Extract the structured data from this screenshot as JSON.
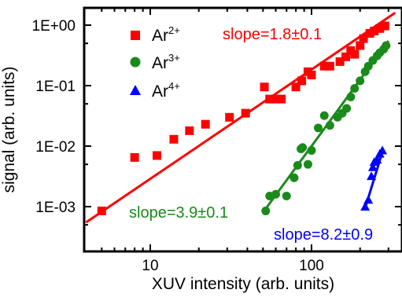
{
  "chart_data": {
    "type": "scatter",
    "title": "",
    "xlabel": "XUV intensity (arb. units)",
    "ylabel": "signal (arb. units)",
    "xscale": "log",
    "yscale": "log",
    "xlim": [
      4.0,
      330
    ],
    "ylim": [
      0.0004,
      1.45
    ],
    "x_tick_labels": [
      {
        "value": 10,
        "label": "10"
      },
      {
        "value": 100,
        "label": "100"
      }
    ],
    "y_tick_labels": [
      {
        "value": 1,
        "label": "1E+00"
      },
      {
        "value": 0.1,
        "label": "1E-01"
      },
      {
        "value": 0.01,
        "label": "1E-02"
      },
      {
        "value": 0.001,
        "label": "1E-03"
      }
    ],
    "grid": false,
    "legend_position": "top-left",
    "series": [
      {
        "ion": "Ar",
        "charge": "2+",
        "marker": "square",
        "color": "#ff0000",
        "points": [
          [
            5.0,
            0.00085
          ],
          [
            8.0,
            0.0065
          ],
          [
            11.0,
            0.007
          ],
          [
            14.0,
            0.013
          ],
          [
            17.5,
            0.018
          ],
          [
            22.0,
            0.023
          ],
          [
            31.0,
            0.03
          ],
          [
            39.0,
            0.035
          ],
          [
            51.0,
            0.095
          ],
          [
            55.0,
            0.06
          ],
          [
            60.0,
            0.06
          ],
          [
            65.0,
            0.06
          ],
          [
            80.0,
            0.095
          ],
          [
            87.0,
            0.12
          ],
          [
            95.0,
            0.17
          ],
          [
            100.0,
            0.15
          ],
          [
            120.0,
            0.21
          ],
          [
            130.0,
            0.21
          ],
          [
            150.0,
            0.25
          ],
          [
            163.0,
            0.3
          ],
          [
            175.0,
            0.38
          ],
          [
            185.0,
            0.33
          ],
          [
            200.0,
            0.46
          ],
          [
            210.0,
            0.6
          ],
          [
            230.0,
            0.73
          ],
          [
            245.0,
            0.8
          ],
          [
            265.0,
            0.88
          ],
          [
            285.0,
            0.97
          ]
        ],
        "fit": {
          "x": [
            4.0,
            330.0
          ],
          "y": [
            0.00055,
            1.6
          ],
          "slope_label": "slope=1.8±0.1"
        }
      },
      {
        "ion": "Ar",
        "charge": "3+",
        "marker": "circle",
        "color": "#1a8a1a",
        "points": [
          [
            52.0,
            0.00085
          ],
          [
            55.0,
            0.0015
          ],
          [
            60.0,
            0.0016
          ],
          [
            70.0,
            0.0015
          ],
          [
            78.0,
            0.003
          ],
          [
            82.0,
            0.0048
          ],
          [
            86.0,
            0.009
          ],
          [
            88.0,
            0.0095
          ],
          [
            95.0,
            0.005
          ],
          [
            100.0,
            0.0085
          ],
          [
            110.0,
            0.02
          ],
          [
            120.0,
            0.032
          ],
          [
            130.0,
            0.022
          ],
          [
            145.0,
            0.03
          ],
          [
            155.0,
            0.035
          ],
          [
            165.0,
            0.042
          ],
          [
            175.0,
            0.065
          ],
          [
            185.0,
            0.09
          ],
          [
            200.0,
            0.12
          ],
          [
            215.0,
            0.17
          ],
          [
            225.0,
            0.21
          ],
          [
            240.0,
            0.26
          ],
          [
            255.0,
            0.31
          ],
          [
            265.0,
            0.35
          ],
          [
            280.0,
            0.4
          ],
          [
            290.0,
            0.46
          ]
        ],
        "fit": {
          "x": [
            50.0,
            300.0
          ],
          "y": [
            0.0008,
            0.55
          ],
          "slope_label": "slope=3.9±0.1"
        }
      },
      {
        "ion": "Ar",
        "charge": "4+",
        "marker": "triangle",
        "color": "#0000ff",
        "points": [
          [
            215.0,
            0.001
          ],
          [
            225.0,
            0.0013
          ],
          [
            235.0,
            0.0032
          ],
          [
            240.0,
            0.0045
          ],
          [
            245.0,
            0.0055
          ],
          [
            255.0,
            0.006
          ],
          [
            265.0,
            0.0075
          ],
          [
            275.0,
            0.0085
          ]
        ],
        "fit": {
          "x": [
            215.0,
            275.0
          ],
          "y": [
            0.00095,
            0.008
          ],
          "slope_label": "slope=8.2±0.9"
        }
      }
    ],
    "legend": [
      {
        "ion": "Ar",
        "charge": "2+"
      },
      {
        "ion": "Ar",
        "charge": "3+"
      },
      {
        "ion": "Ar",
        "charge": "4+"
      }
    ],
    "annotations": [
      {
        "text": "slope=1.8±0.1",
        "color": "#ff0000"
      },
      {
        "text": "slope=3.9±0.1",
        "color": "#1a8a1a"
      },
      {
        "text": "slope=8.2±0.9",
        "color": "#0000ff"
      }
    ]
  }
}
